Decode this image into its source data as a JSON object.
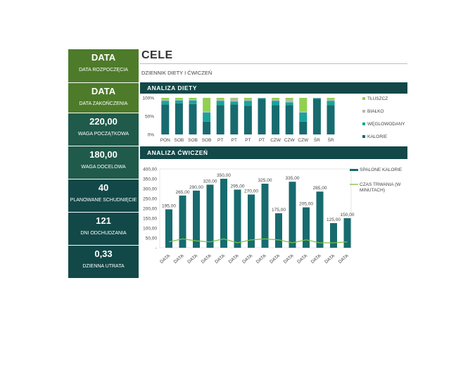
{
  "sidebar": {
    "cards": [
      {
        "big": "DATA",
        "small": "DATA ROZPOCZĘCIA"
      },
      {
        "big": "DATA",
        "small": "DATA ZAKOŃCZENIA"
      },
      {
        "big": "220,00",
        "small": "WAGA POCZĄTKOWA"
      },
      {
        "big": "180,00",
        "small": "WAGA DOCELOWA"
      },
      {
        "big": "40",
        "small": "PLANOWANE SCHUDNIĘCIE"
      },
      {
        "big": "121",
        "small": "DNI ODCHUDZANIA"
      },
      {
        "big": "0,33",
        "small": "DZIENNA UTRATA"
      }
    ]
  },
  "header": {
    "title": "CELE",
    "subtitle": "DZIENNIK DIETY I ĆWICZEŃ"
  },
  "sections": {
    "diet": "ANALIZA DIETY",
    "exercise": "ANALIZA ĆWICZEŃ"
  },
  "colors": {
    "kalorie": "#176b6f",
    "weglowodany": "#1aa39a",
    "bialko": "#b7b7b7",
    "tluszcz": "#92d050",
    "czas": "#7ac143"
  },
  "chart_data": [
    {
      "type": "bar",
      "stacked": "100%",
      "categories": [
        "PON",
        "SOB",
        "SOB",
        "SOB",
        "PT",
        "PT",
        "PT",
        "PT",
        "CZW",
        "CZW",
        "CZW",
        "ŚR",
        "ŚR"
      ],
      "ytick_labels": [
        "0%",
        "50%",
        "100%"
      ],
      "legend_position": "right",
      "series": [
        {
          "name": "KALORIE",
          "values": [
            82,
            85,
            83,
            35,
            80,
            82,
            78,
            97,
            80,
            80,
            35,
            97,
            80
          ]
        },
        {
          "name": "WĘGLOWODANY",
          "values": [
            10,
            8,
            10,
            25,
            12,
            8,
            14,
            2,
            12,
            8,
            25,
            2,
            12
          ]
        },
        {
          "name": "BIAŁKO",
          "values": [
            3,
            3,
            3,
            2,
            3,
            8,
            3,
            1,
            3,
            6,
            2,
            1,
            3
          ]
        },
        {
          "name": "TŁUSZCZ",
          "values": [
            5,
            4,
            4,
            38,
            5,
            2,
            5,
            0,
            5,
            6,
            38,
            0,
            5
          ]
        }
      ]
    },
    {
      "type": "bar",
      "categories": [
        "DATA",
        "DATA",
        "DATA",
        "DATA",
        "DATA",
        "DATA",
        "DATA",
        "DATA",
        "DATA",
        "DATA",
        "DATA",
        "DATA",
        "DATA",
        "DATA"
      ],
      "ylim": [
        0,
        400
      ],
      "ytick_labels": [
        "-",
        "50,00",
        "100,00",
        "150,00",
        "200,00",
        "250,00",
        "300,00",
        "350,00",
        "400,00"
      ],
      "legend_position": "right",
      "series": [
        {
          "name": "SPALONE KALORIE",
          "values": [
            195,
            265,
            290,
            320,
            350,
            295,
            270,
            325,
            175,
            335,
            205,
            285,
            125,
            150
          ],
          "labels": [
            "195,00",
            "265,00",
            "290,00",
            "320,00",
            "350,00",
            "295,00",
            "270,00",
            "325,00",
            "175,00",
            "335,00",
            "205,00",
            "285,00",
            "125,00",
            "150,00"
          ]
        },
        {
          "name": "CZAS TRWANIA (W MINUTACH)",
          "values": [
            30,
            45,
            35,
            30,
            45,
            25,
            40,
            45,
            40,
            25,
            40,
            25,
            25,
            30
          ]
        }
      ]
    }
  ]
}
